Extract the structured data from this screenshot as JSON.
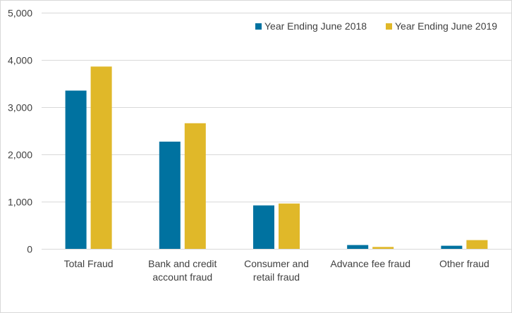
{
  "chart_data": {
    "type": "bar",
    "title": "",
    "xlabel": "",
    "ylabel": "",
    "categories": [
      [
        "Total Fraud"
      ],
      [
        "Bank and credit",
        "account fraud"
      ],
      [
        "Consumer and",
        "retail fraud"
      ],
      [
        "Advance fee fraud"
      ],
      [
        "Other fraud"
      ]
    ],
    "series": [
      {
        "name": "Year Ending June 2018",
        "color": "#0072a0",
        "values": [
          3350,
          2270,
          920,
          80,
          65
        ]
      },
      {
        "name": "Year Ending June 2019",
        "color": "#e0b829",
        "values": [
          3860,
          2660,
          960,
          40,
          185
        ]
      }
    ],
    "ylim": [
      0,
      5000
    ],
    "yticks": [
      0,
      1000,
      2000,
      3000,
      4000,
      5000
    ],
    "ytick_labels": [
      "0",
      "1,000",
      "2,000",
      "3,000",
      "4,000",
      "5,000"
    ],
    "grid": true,
    "legend_position": "top-right"
  }
}
